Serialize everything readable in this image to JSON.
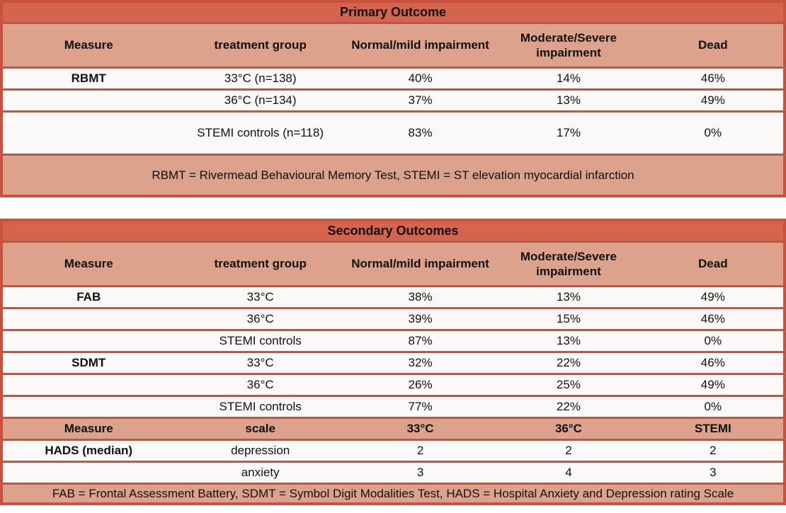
{
  "colors": {
    "title_bg": "#d4654c",
    "header_bg": "#dca28b",
    "row_bg": "#fbf9f7",
    "outer_border": "#c8523e",
    "separator": "#b5594a",
    "text": "#111111"
  },
  "tables": [
    {
      "title": "Primary Outcome",
      "columns": [
        "Measure",
        "treatment group",
        "Normal/mild impairment",
        "Moderate/Severe impairment",
        "Dead"
      ],
      "rows": [
        {
          "cells": [
            "RBMT",
            "33°C (n=138)",
            "40%",
            "14%",
            "46%"
          ]
        },
        {
          "cells": [
            "",
            "36°C (n=134)",
            "37%",
            "13%",
            "49%"
          ]
        },
        {
          "tall": true,
          "cells": [
            "",
            "STEMI controls (n=118)",
            "83%",
            "17%",
            "0%"
          ]
        }
      ],
      "footnote": "RBMT = Rivermead Behavioural Memory Test, STEMI = ST elevation myocardial infarction",
      "footnote_tall": true
    },
    {
      "title": "Secondary Outcomes",
      "columns": [
        "Measure",
        "treatment group",
        "Normal/mild impairment",
        "Moderate/Severe impairment",
        "Dead"
      ],
      "rows": [
        {
          "cells": [
            "FAB",
            "33°C",
            "38%",
            "13%",
            "49%"
          ]
        },
        {
          "cells": [
            "",
            "36°C",
            "39%",
            "15%",
            "46%"
          ]
        },
        {
          "cells": [
            "",
            "STEMI controls",
            "87%",
            "13%",
            "0%"
          ]
        },
        {
          "cells": [
            "SDMT",
            "33°C",
            "32%",
            "22%",
            "46%"
          ]
        },
        {
          "cells": [
            "",
            "36°C",
            "26%",
            "25%",
            "49%"
          ]
        },
        {
          "cells": [
            "",
            "STEMI controls",
            "77%",
            "22%",
            "0%"
          ]
        },
        {
          "subheader": true,
          "cells": [
            "Measure",
            "scale",
            "33°C",
            "36°C",
            "STEMI"
          ]
        },
        {
          "cells": [
            "HADS (median)",
            "depression",
            "2",
            "2",
            "2"
          ]
        },
        {
          "cells": [
            "",
            "anxiety",
            "3",
            "4",
            "3"
          ]
        }
      ],
      "footnote": "FAB = Frontal Assessment Battery, SDMT = Symbol Digit Modalities Test, HADS = Hospital Anxiety and Depression rating Scale",
      "footnote_tall": false
    }
  ]
}
